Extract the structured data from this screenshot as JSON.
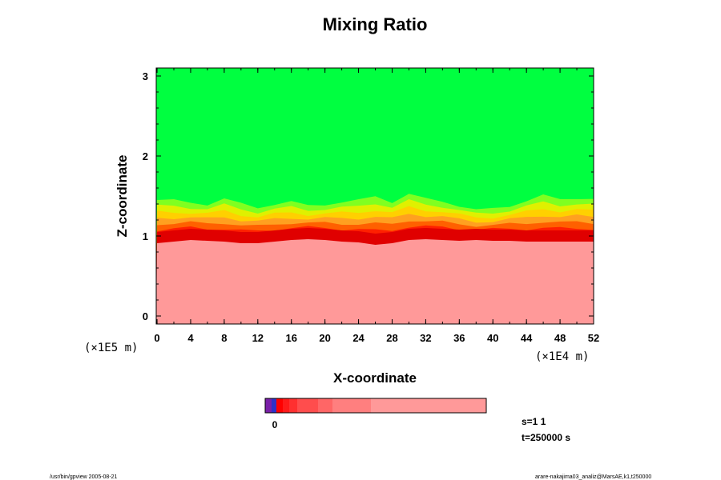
{
  "chart_data": {
    "type": "heatmap",
    "title": "Mixing Ratio",
    "xlabel": "X-coordinate",
    "ylabel": "Z-coordinate",
    "x_scale_label": "(×1E4 m)",
    "y_scale_label": "(×1E5 m)",
    "x_ticks": [
      "0",
      "4",
      "8",
      "12",
      "16",
      "20",
      "24",
      "28",
      "32",
      "36",
      "40",
      "44",
      "48",
      "52"
    ],
    "y_ticks": [
      "0",
      "1",
      "2",
      "3"
    ],
    "xlim": [
      -0.1,
      52
    ],
    "ylim": [
      -0.1,
      3.1
    ],
    "colorbar_label": "0",
    "colorbar_colors": [
      "#7a1fa8",
      "#3030c8",
      "#ff0000",
      "#ff1a1a",
      "#ff3030",
      "#ff4d4d",
      "#ff6666",
      "#ff7f7f",
      "#ff9999"
    ],
    "fill_colors": {
      "upper": "#00ff40",
      "interface_band": [
        "#80ff20",
        "#e0f000",
        "#ffd000",
        "#ffa020",
        "#ff6000",
        "#ff2000"
      ],
      "lower": "#ff9999",
      "dark_band": "#e00000"
    },
    "interface_profile": {
      "x": [
        0,
        2,
        4,
        6,
        8,
        10,
        12,
        14,
        16,
        18,
        20,
        22,
        24,
        26,
        28,
        30,
        32,
        34,
        36,
        38,
        40,
        42,
        44,
        46,
        48,
        50,
        52
      ],
      "z_lower": [
        1.0,
        1.02,
        1.04,
        1.03,
        1.02,
        1.0,
        1.0,
        1.02,
        1.04,
        1.05,
        1.04,
        1.02,
        1.01,
        0.98,
        1.0,
        1.04,
        1.05,
        1.04,
        1.03,
        1.04,
        1.03,
        1.03,
        1.02,
        1.02,
        1.02,
        1.02,
        1.02
      ],
      "z_upper": [
        1.45,
        1.44,
        1.42,
        1.4,
        1.46,
        1.4,
        1.36,
        1.4,
        1.42,
        1.38,
        1.4,
        1.42,
        1.44,
        1.5,
        1.43,
        1.52,
        1.46,
        1.44,
        1.38,
        1.32,
        1.34,
        1.38,
        1.44,
        1.5,
        1.46,
        1.48,
        1.46
      ]
    }
  },
  "annotations": {
    "step": "s=1 1",
    "time": "t=250000 s",
    "footer_left": "/usr/bin/gpview 2005-08-21",
    "footer_right": "arare-nakajima03_analiz@MarsAE,k1,t250000"
  }
}
